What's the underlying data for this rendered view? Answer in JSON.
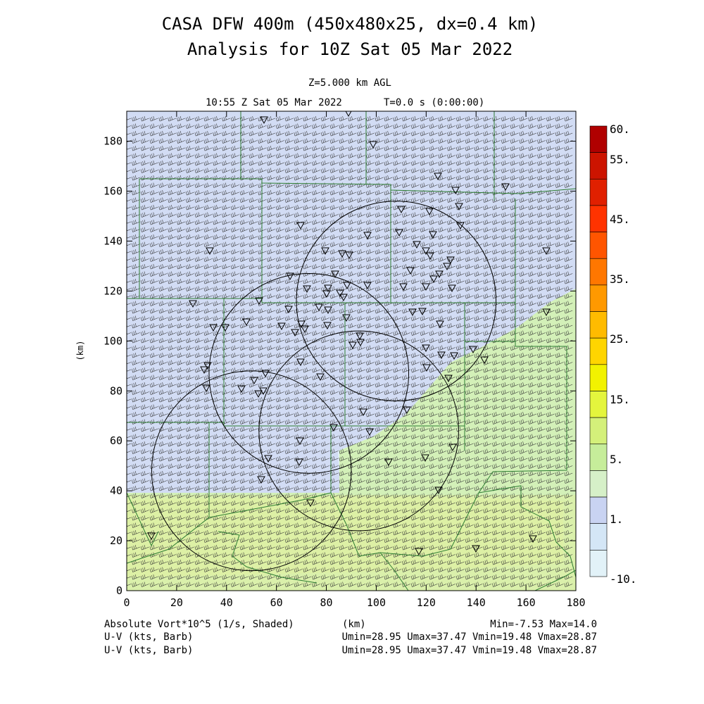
{
  "header": {
    "title_line1": "CASA DFW 400m (450x480x25, dx=0.4 km)",
    "title_line2": "Analysis for 10Z Sat 05 Mar 2022",
    "level": "Z=5.000 km AGL",
    "valid_time": "10:55 Z Sat 05 Mar 2022",
    "model_time": "T=0.0 s (0:00:00)"
  },
  "footer": {
    "field1_label": "Absolute Vort*10^5 (1/s, Shaded)",
    "xlabel_under": "(km)",
    "field1_range": "Min=-7.53 Max=14.0",
    "field2_label": "U-V (kts, Barb)",
    "field2_range": "Umin=28.95 Umax=37.47 Vmin=19.48 Vmax=28.87",
    "field3_label": "U-V (kts, Barb)",
    "field3_range": "Umin=28.95 Umax=37.47 Vmin=19.48 Vmax=28.87"
  },
  "chart_data": {
    "type": "heatmap",
    "xlabel": "",
    "ylabel": "(km)",
    "xlim": [
      0,
      180
    ],
    "ylim": [
      0,
      192
    ],
    "xticks": [
      0,
      20,
      40,
      60,
      80,
      100,
      120,
      140,
      160,
      180
    ],
    "yticks": [
      0,
      20,
      40,
      60,
      80,
      100,
      120,
      140,
      160,
      180
    ],
    "colorbar": {
      "labels": [
        "60.",
        "55.",
        "45.",
        "35.",
        "25.",
        "15.",
        "5.",
        "1.",
        "-10."
      ],
      "colors": [
        "#b00000",
        "#cc1400",
        "#e02000",
        "#ff3300",
        "#ff5500",
        "#ff7700",
        "#ff9900",
        "#ffbb00",
        "#ffd500",
        "#f2f200",
        "#e4f53d",
        "#d4f07a",
        "#c6ed9a",
        "#d6f0c8",
        "#c9d3f2",
        "#d4e6f6",
        "#e2f2f8"
      ]
    },
    "regions": [
      {
        "name": "background",
        "color": "#e2f2f8"
      },
      {
        "name": "weak-positive-vorticity",
        "color": "#d2dcf4"
      },
      {
        "name": "positive-vorticity",
        "color": "#d3f0b8"
      },
      {
        "name": "higher-vorticity",
        "color": "#e0f0a0"
      }
    ],
    "radar_rings": [
      {
        "center": [
          108,
          116
        ],
        "radius": 40
      },
      {
        "center": [
          73,
          87
        ],
        "radius": 40
      },
      {
        "center": [
          93,
          64
        ],
        "radius": 40
      },
      {
        "center": [
          50,
          48
        ],
        "radius": 40
      }
    ],
    "wind_barbs": {
      "direction_deg": 245,
      "u_kts": [
        28.95,
        37.47
      ],
      "v_kts": [
        19.48,
        28.87
      ]
    }
  }
}
